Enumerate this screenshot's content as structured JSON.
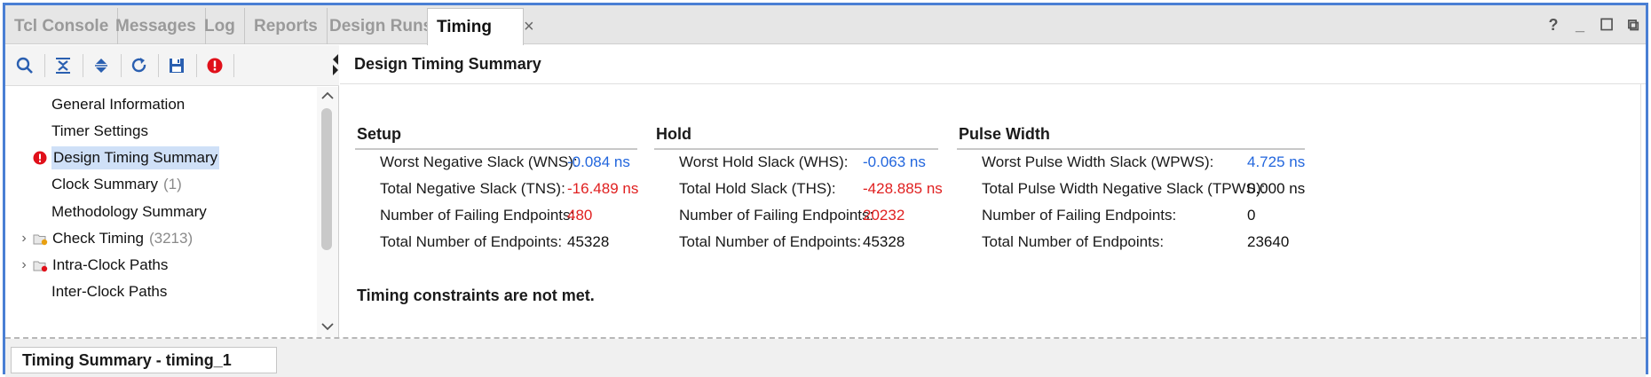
{
  "tabs": [
    {
      "label": "Tcl Console"
    },
    {
      "label": "Messages"
    },
    {
      "label": "Log"
    },
    {
      "label": "Reports"
    },
    {
      "label": "Design Runs"
    },
    {
      "label": "Timing",
      "active": true,
      "close": "×"
    }
  ],
  "window_controls": {
    "help": "?",
    "minimize": "_",
    "restore": "☐",
    "float": "⧉"
  },
  "toolbar": {
    "icons": [
      "search-icon",
      "collapse-all-icon",
      "expand-all-icon",
      "refresh-icon",
      "save-icon",
      "error-icon"
    ],
    "accent": "#2a5fb0",
    "error_color": "#e0101a"
  },
  "tree": {
    "items": [
      {
        "label": "General Information"
      },
      {
        "label": "Timer Settings"
      },
      {
        "label": "Design Timing Summary",
        "selected": true,
        "status": "error"
      },
      {
        "label": "Clock Summary",
        "count": "(1)"
      },
      {
        "label": "Methodology Summary"
      },
      {
        "label": "Check Timing",
        "count": "(3213)",
        "expandable": true
      },
      {
        "label": "Intra-Clock Paths",
        "expandable": true
      },
      {
        "label": "Inter-Clock Paths"
      }
    ]
  },
  "content": {
    "title": "Design Timing Summary",
    "setup": {
      "heading": "Setup",
      "rows": [
        {
          "label": "Worst Negative Slack (WNS):",
          "value": "-0.084 ns",
          "color": "blue"
        },
        {
          "label": "Total Negative Slack (TNS):",
          "value": "-16.489 ns",
          "color": "red"
        },
        {
          "label": "Number of Failing Endpoints:",
          "value": "480",
          "color": "red"
        },
        {
          "label": "Total Number of Endpoints:",
          "value": "45328",
          "color": "black"
        }
      ]
    },
    "hold": {
      "heading": "Hold",
      "rows": [
        {
          "label": "Worst Hold Slack (WHS):",
          "value": "-0.063 ns",
          "color": "blue"
        },
        {
          "label": "Total Hold Slack (THS):",
          "value": "-428.885 ns",
          "color": "red"
        },
        {
          "label": "Number of Failing Endpoints:",
          "value": "20232",
          "color": "red"
        },
        {
          "label": "Total Number of Endpoints:",
          "value": "45328",
          "color": "black"
        }
      ]
    },
    "pulse": {
      "heading": "Pulse Width",
      "rows": [
        {
          "label": "Worst Pulse Width Slack (WPWS):",
          "value": "4.725 ns",
          "color": "blue"
        },
        {
          "label": "Total Pulse Width Negative Slack (TPWS):",
          "value": "0.000 ns",
          "color": "black"
        },
        {
          "label": "Number of Failing Endpoints:",
          "value": "0",
          "color": "black"
        },
        {
          "label": "Total Number of Endpoints:",
          "value": "23640",
          "color": "black"
        }
      ]
    },
    "status_message": "Timing constraints are not met."
  },
  "bottom_tab": {
    "label": "Timing Summary - timing_1"
  }
}
